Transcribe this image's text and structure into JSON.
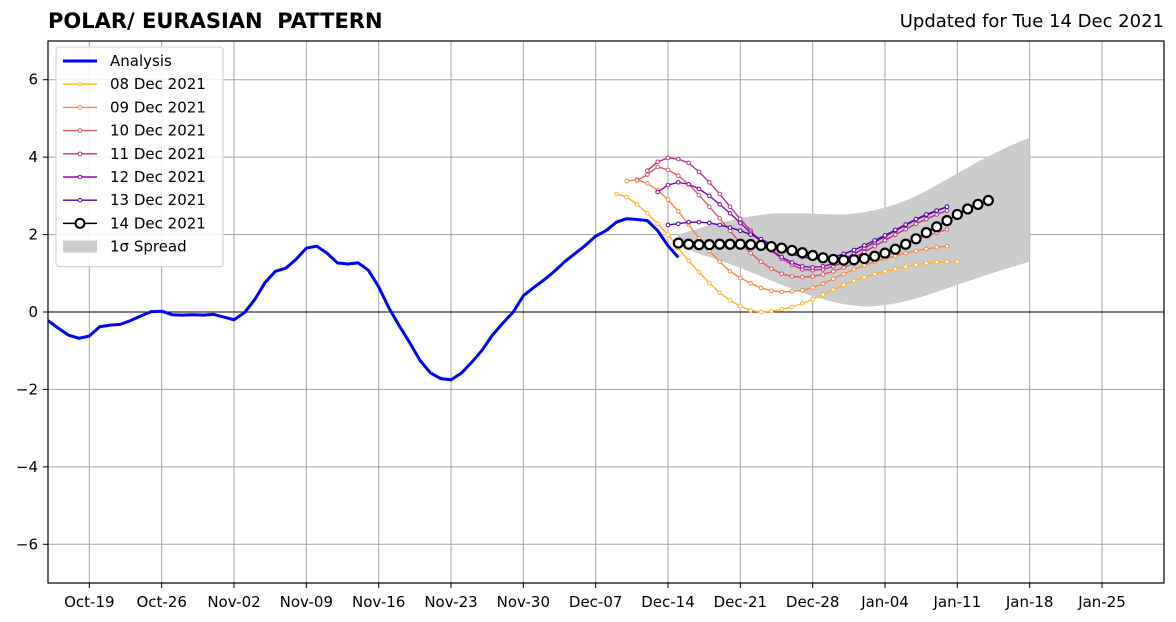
{
  "chart_data": {
    "type": "line",
    "title": "POLAR/ EURASIAN  PATTERN",
    "subtitle": "Updated for Tue 14 Dec 2021",
    "xlabel": "",
    "ylabel": "",
    "ylim": [
      -7,
      7
    ],
    "yticks": [
      -6,
      -4,
      -2,
      0,
      2,
      4,
      6
    ],
    "xlim": [
      "2021-10-15",
      "2022-01-31"
    ],
    "xticks": [
      {
        "date": "2021-10-19",
        "label": "Oct-19"
      },
      {
        "date": "2021-10-26",
        "label": "Oct-26"
      },
      {
        "date": "2021-11-02",
        "label": "Nov-02"
      },
      {
        "date": "2021-11-09",
        "label": "Nov-09"
      },
      {
        "date": "2021-11-16",
        "label": "Nov-16"
      },
      {
        "date": "2021-11-23",
        "label": "Nov-23"
      },
      {
        "date": "2021-11-30",
        "label": "Nov-30"
      },
      {
        "date": "2021-12-07",
        "label": "Dec-07"
      },
      {
        "date": "2021-12-14",
        "label": "Dec-14"
      },
      {
        "date": "2021-12-21",
        "label": "Dec-21"
      },
      {
        "date": "2021-12-28",
        "label": "Dec-28"
      },
      {
        "date": "2022-01-04",
        "label": "Jan-04"
      },
      {
        "date": "2022-01-11",
        "label": "Jan-11"
      },
      {
        "date": "2022-01-18",
        "label": "Jan-18"
      },
      {
        "date": "2022-01-25",
        "label": "Jan-25"
      }
    ],
    "grid": true,
    "legend_position": "upper-left",
    "analysis": {
      "name": "Analysis",
      "color": "#0000ff",
      "start_date": "2021-10-15",
      "values": [
        -0.22,
        -0.42,
        -0.6,
        -0.68,
        -0.62,
        -0.38,
        -0.34,
        -0.32,
        -0.22,
        -0.1,
        0.01,
        0.02,
        -0.07,
        -0.08,
        -0.07,
        -0.08,
        -0.06,
        -0.13,
        -0.2,
        -0.02,
        0.32,
        0.76,
        1.05,
        1.13,
        1.36,
        1.65,
        1.7,
        1.52,
        1.27,
        1.24,
        1.27,
        1.08,
        0.65,
        0.1,
        -0.36,
        -0.79,
        -1.25,
        -1.57,
        -1.72,
        -1.75,
        -1.58,
        -1.3,
        -0.99,
        -0.6,
        -0.29,
        -0.01,
        0.42,
        0.63,
        0.83,
        1.05,
        1.3,
        1.51,
        1.72,
        1.96,
        2.1,
        2.32,
        2.41,
        2.39,
        2.36,
        2.1,
        1.71,
        1.41
      ]
    },
    "forecasts": [
      {
        "name": "08 Dec 2021",
        "color": "#fdb42f",
        "start_date": "2021-12-09",
        "values": [
          3.05,
          2.97,
          2.78,
          2.55,
          2.28,
          2.0,
          1.65,
          1.32,
          1.03,
          0.75,
          0.5,
          0.3,
          0.15,
          0.04,
          0.0,
          0.02,
          0.07,
          0.13,
          0.22,
          0.33,
          0.45,
          0.58,
          0.7,
          0.81,
          0.9,
          0.98,
          1.05,
          1.11,
          1.17,
          1.22,
          1.26,
          1.29,
          1.3,
          1.3
        ]
      },
      {
        "name": "09 Dec 2021",
        "color": "#f48849",
        "start_date": "2021-12-10",
        "values": [
          3.38,
          3.42,
          3.32,
          3.15,
          2.9,
          2.6,
          2.26,
          1.9,
          1.58,
          1.3,
          1.05,
          0.88,
          0.74,
          0.62,
          0.55,
          0.52,
          0.53,
          0.56,
          0.63,
          0.73,
          0.86,
          0.98,
          1.1,
          1.2,
          1.3,
          1.38,
          1.45,
          1.52,
          1.58,
          1.63,
          1.67,
          1.7
        ]
      },
      {
        "name": "10 Dec 2021",
        "color": "#db5c68",
        "start_date": "2021-12-11",
        "values": [
          3.4,
          3.55,
          3.75,
          3.67,
          3.52,
          3.3,
          3.02,
          2.72,
          2.42,
          2.1,
          1.78,
          1.52,
          1.3,
          1.12,
          0.99,
          0.92,
          0.9,
          0.92,
          0.97,
          1.05,
          1.15,
          1.25,
          1.35,
          1.45,
          1.56,
          1.67,
          1.77,
          1.86,
          1.96,
          2.05,
          2.13
        ]
      },
      {
        "name": "11 Dec 2021",
        "color": "#b83289",
        "start_date": "2021-12-12",
        "values": [
          3.65,
          3.88,
          3.98,
          3.95,
          3.85,
          3.62,
          3.35,
          3.05,
          2.72,
          2.4,
          2.1,
          1.82,
          1.58,
          1.38,
          1.22,
          1.1,
          1.08,
          1.1,
          1.18,
          1.28,
          1.4,
          1.55,
          1.7,
          1.85,
          2.0,
          2.14,
          2.28,
          2.4,
          2.52,
          2.62
        ]
      },
      {
        "name": "12 Dec 2021",
        "color": "#8b0aa5",
        "start_date": "2021-12-13",
        "values": [
          3.1,
          3.28,
          3.35,
          3.3,
          3.18,
          3.0,
          2.78,
          2.55,
          2.3,
          2.05,
          1.82,
          1.6,
          1.42,
          1.28,
          1.18,
          1.15,
          1.18,
          1.25,
          1.36,
          1.5,
          1.65,
          1.8,
          1.95,
          2.1,
          2.24,
          2.38,
          2.5,
          2.61,
          2.72
        ]
      },
      {
        "name": "13 Dec 2021",
        "color": "#5302a3",
        "start_date": "2021-12-14",
        "values": [
          2.25,
          2.28,
          2.32,
          2.32,
          2.3,
          2.25,
          2.18,
          2.1,
          2.0,
          1.88,
          1.75,
          1.62,
          1.5,
          1.42,
          1.38,
          1.38,
          1.42,
          1.5,
          1.6,
          1.72,
          1.85,
          1.98,
          2.12,
          2.26,
          2.4,
          2.52,
          2.62,
          2.72
        ]
      }
    ],
    "current_forecast": {
      "name": "14 Dec 2021",
      "color": "#000000",
      "start_date": "2021-12-15",
      "values": [
        1.78,
        1.75,
        1.74,
        1.74,
        1.75,
        1.75,
        1.75,
        1.74,
        1.72,
        1.69,
        1.65,
        1.59,
        1.53,
        1.46,
        1.4,
        1.36,
        1.34,
        1.35,
        1.38,
        1.44,
        1.52,
        1.62,
        1.75,
        1.89,
        2.05,
        2.2,
        2.36,
        2.52,
        2.66,
        2.78,
        2.88
      ]
    },
    "spread": {
      "name": "1σ Spread",
      "color": "#cccccc",
      "start_date": "2021-12-15",
      "upper": [
        2.0,
        2.08,
        2.16,
        2.24,
        2.3,
        2.36,
        2.42,
        2.47,
        2.51,
        2.54,
        2.55,
        2.55,
        2.55,
        2.54,
        2.53,
        2.52,
        2.52,
        2.54,
        2.58,
        2.63,
        2.7,
        2.78,
        2.88,
        3.0,
        3.13,
        3.28,
        3.43,
        3.58,
        3.73,
        3.88,
        4.02,
        4.15,
        4.28,
        4.4,
        4.5
      ],
      "lower": [
        1.7,
        1.6,
        1.5,
        1.42,
        1.33,
        1.24,
        1.14,
        1.03,
        0.92,
        0.81,
        0.7,
        0.6,
        0.5,
        0.41,
        0.33,
        0.26,
        0.2,
        0.16,
        0.14,
        0.15,
        0.18,
        0.22,
        0.28,
        0.35,
        0.43,
        0.52,
        0.61,
        0.7,
        0.79,
        0.88,
        0.97,
        1.06,
        1.14,
        1.22,
        1.3
      ]
    }
  }
}
